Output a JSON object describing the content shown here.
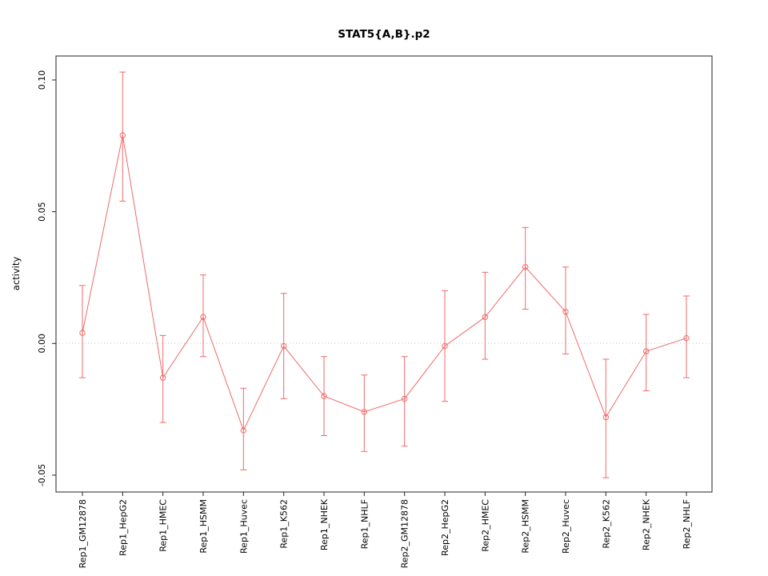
{
  "page": {
    "background": "#ffffff"
  },
  "chart_data": {
    "type": "line",
    "title": "STAT5{A,B}.p2",
    "ylabel": "activity",
    "xlabel": "",
    "legend": "none",
    "marker": "open-circle",
    "grid": "dotted-zero-line-only",
    "categories": [
      "Rep1_GM12878",
      "Rep1_HepG2",
      "Rep1_HMEC",
      "Rep1_HSMM",
      "Rep1_Huvec",
      "Rep1_K562",
      "Rep1_NHEK",
      "Rep1_NHLF",
      "Rep2_GM12878",
      "Rep2_HepG2",
      "Rep2_HMEC",
      "Rep2_HSMM",
      "Rep2_Huvec",
      "Rep2_K562",
      "Rep2_NHEK",
      "Rep2_NHLF"
    ],
    "series": [
      {
        "name": "activity",
        "values": [
          0.004,
          0.079,
          -0.013,
          0.01,
          -0.033,
          -0.001,
          -0.02,
          -0.026,
          -0.021,
          -0.001,
          0.01,
          0.029,
          0.012,
          -0.028,
          -0.003,
          0.002
        ],
        "lower": [
          -0.013,
          0.054,
          -0.03,
          -0.005,
          -0.048,
          -0.021,
          -0.035,
          -0.041,
          -0.039,
          -0.022,
          -0.006,
          0.013,
          -0.004,
          -0.051,
          -0.018,
          -0.013
        ],
        "upper": [
          0.022,
          0.103,
          0.003,
          0.026,
          -0.017,
          0.019,
          -0.005,
          -0.012,
          -0.005,
          0.02,
          0.027,
          0.044,
          0.029,
          -0.006,
          0.011,
          0.018
        ]
      }
    ],
    "yticks": [
      -0.05,
      0.0,
      0.05,
      0.1
    ],
    "ylim": [
      -0.0564,
      0.1091
    ],
    "colors": {
      "line": "#ee6b6b",
      "error_bar": "#ee6b6b",
      "zero_line": "#cccccc",
      "axis": "#222222",
      "text": "#000000"
    }
  }
}
